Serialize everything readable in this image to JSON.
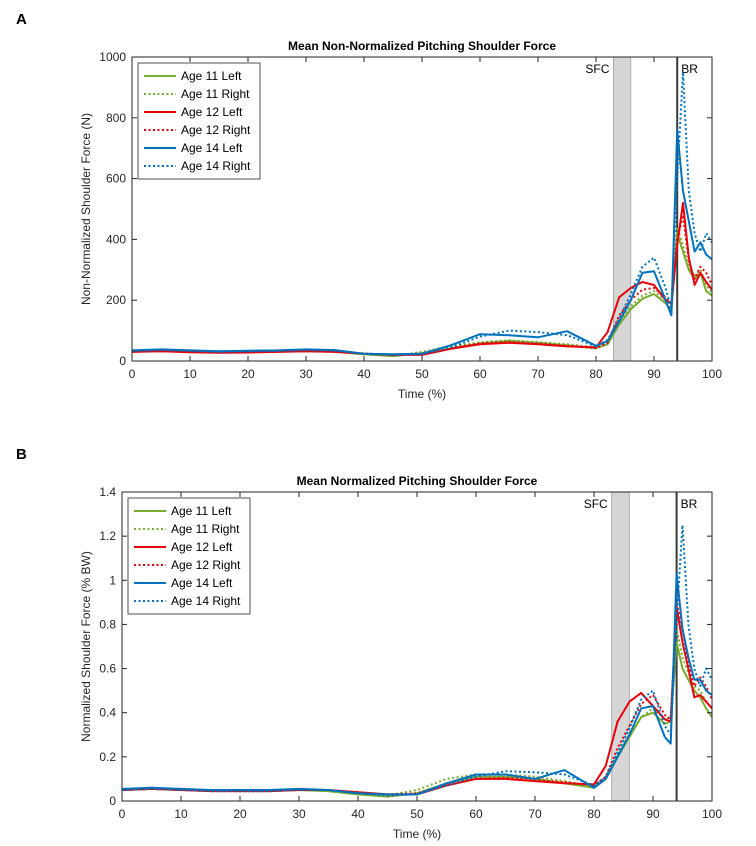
{
  "chart_data": [
    {
      "panel": "A",
      "type": "line",
      "title": "Mean Non-Normalized Pitching Shoulder Force",
      "xlabel": "Time (%)",
      "ylabel": "Non-Normalized Shoulder Force (N)",
      "xlim": [
        0,
        100
      ],
      "ylim": [
        0,
        1000
      ],
      "xticks": [
        0,
        10,
        20,
        30,
        40,
        50,
        60,
        70,
        80,
        90,
        100
      ],
      "yticks": [
        0,
        200,
        400,
        600,
        800,
        1000
      ],
      "ytick_labels": [
        "0",
        "200",
        "400",
        "600",
        "800",
        "1000"
      ],
      "legend_position": "top-left",
      "shaded_region": {
        "label": "SFC",
        "x_start": 83,
        "x_end": 86
      },
      "vertical_line": {
        "label": "BR",
        "x": 94
      },
      "series": [
        {
          "name": "Age 11 Left",
          "color": "#77ac30",
          "dash": "solid",
          "x": [
            0,
            5,
            10,
            15,
            20,
            25,
            30,
            35,
            40,
            45,
            50,
            55,
            60,
            65,
            70,
            75,
            80,
            82,
            84,
            86,
            88,
            90,
            92,
            93,
            94,
            95,
            96,
            97,
            98,
            99,
            100
          ],
          "y": [
            32,
            34,
            31,
            29,
            31,
            31,
            33,
            31,
            22,
            16,
            26,
            42,
            58,
            66,
            60,
            52,
            42,
            55,
            120,
            170,
            205,
            220,
            190,
            165,
            420,
            360,
            300,
            270,
            290,
            230,
            215
          ]
        },
        {
          "name": "Age 11 Right",
          "color": "#77ac30",
          "dash": "dotted",
          "x": [
            0,
            5,
            10,
            15,
            20,
            25,
            30,
            35,
            40,
            45,
            50,
            55,
            60,
            65,
            70,
            75,
            80,
            82,
            84,
            86,
            88,
            90,
            92,
            93,
            94,
            95,
            96,
            97,
            98,
            99,
            100
          ],
          "y": [
            30,
            32,
            30,
            28,
            30,
            30,
            32,
            30,
            22,
            16,
            30,
            48,
            62,
            68,
            62,
            55,
            45,
            60,
            130,
            180,
            215,
            230,
            200,
            175,
            440,
            380,
            310,
            280,
            300,
            250,
            225
          ]
        },
        {
          "name": "Age 12 Left",
          "color": "#e8000b",
          "dash": "solid",
          "x": [
            0,
            5,
            10,
            15,
            20,
            25,
            30,
            35,
            40,
            45,
            50,
            55,
            60,
            65,
            70,
            75,
            80,
            82,
            84,
            86,
            88,
            90,
            92,
            93,
            94,
            95,
            96,
            97,
            98,
            99,
            100
          ],
          "y": [
            30,
            32,
            29,
            27,
            28,
            30,
            32,
            30,
            24,
            20,
            20,
            40,
            55,
            60,
            55,
            48,
            45,
            95,
            210,
            240,
            260,
            250,
            200,
            190,
            380,
            520,
            340,
            250,
            290,
            260,
            235
          ]
        },
        {
          "name": "Age 12 Right",
          "color": "#e8000b",
          "dash": "dotted",
          "x": [
            0,
            5,
            10,
            15,
            20,
            25,
            30,
            35,
            40,
            45,
            50,
            55,
            60,
            65,
            70,
            75,
            80,
            82,
            84,
            86,
            88,
            90,
            92,
            93,
            94,
            95,
            96,
            97,
            98,
            99,
            100
          ],
          "y": [
            31,
            33,
            30,
            28,
            29,
            31,
            33,
            31,
            25,
            20,
            22,
            42,
            58,
            62,
            57,
            50,
            42,
            60,
            150,
            200,
            235,
            240,
            210,
            185,
            400,
            480,
            330,
            270,
            310,
            290,
            250
          ]
        },
        {
          "name": "Age 14 Left",
          "color": "#0072bd",
          "dash": "solid",
          "x": [
            0,
            5,
            10,
            15,
            20,
            25,
            30,
            35,
            40,
            45,
            50,
            55,
            60,
            65,
            70,
            75,
            80,
            82,
            84,
            86,
            88,
            90,
            92,
            93,
            94,
            95,
            96,
            97,
            98,
            99,
            100
          ],
          "y": [
            35,
            38,
            35,
            32,
            34,
            35,
            38,
            36,
            24,
            22,
            24,
            52,
            88,
            85,
            78,
            98,
            50,
            65,
            130,
            200,
            290,
            295,
            200,
            150,
            760,
            560,
            460,
            360,
            390,
            350,
            335
          ]
        },
        {
          "name": "Age 14 Right",
          "color": "#0072bd",
          "dash": "dotted",
          "x": [
            0,
            5,
            10,
            15,
            20,
            25,
            30,
            35,
            40,
            45,
            50,
            55,
            60,
            65,
            70,
            75,
            80,
            82,
            84,
            86,
            88,
            90,
            92,
            93,
            94,
            95,
            96,
            97,
            98,
            99,
            100
          ],
          "y": [
            33,
            36,
            33,
            30,
            32,
            33,
            36,
            34,
            24,
            20,
            22,
            45,
            80,
            100,
            95,
            85,
            48,
            70,
            140,
            220,
            310,
            340,
            240,
            170,
            600,
            950,
            560,
            420,
            360,
            420,
            390
          ]
        }
      ]
    },
    {
      "panel": "B",
      "type": "line",
      "title": "Mean Normalized Pitching Shoulder Force",
      "xlabel": "Time (%)",
      "ylabel": "Normalized Shoulder Force (% BW)",
      "xlim": [
        0,
        100
      ],
      "ylim": [
        0,
        1.4
      ],
      "xticks": [
        0,
        10,
        20,
        30,
        40,
        50,
        60,
        70,
        80,
        90,
        100
      ],
      "yticks": [
        0,
        0.2,
        0.4,
        0.6,
        0.8,
        1,
        1.2,
        1.4
      ],
      "ytick_labels": [
        "0",
        "0.2",
        "0.4",
        "0.6",
        "0.8",
        "1",
        "1.2",
        "1.4"
      ],
      "legend_position": "top-left",
      "shaded_region": {
        "label": "SFC",
        "x_start": 83,
        "x_end": 86
      },
      "vertical_line": {
        "label": "BR",
        "x": 94
      },
      "series": [
        {
          "name": "Age 11 Left",
          "color": "#77ac30",
          "dash": "solid",
          "x": [
            0,
            5,
            10,
            15,
            20,
            25,
            30,
            35,
            40,
            45,
            50,
            55,
            60,
            65,
            70,
            75,
            80,
            82,
            84,
            86,
            88,
            90,
            92,
            93,
            94,
            95,
            96,
            97,
            98,
            99,
            100
          ],
          "y": [
            0.05,
            0.055,
            0.05,
            0.05,
            0.045,
            0.045,
            0.05,
            0.045,
            0.03,
            0.02,
            0.035,
            0.08,
            0.11,
            0.11,
            0.1,
            0.08,
            0.06,
            0.1,
            0.2,
            0.29,
            0.38,
            0.4,
            0.35,
            0.36,
            0.72,
            0.6,
            0.55,
            0.5,
            0.47,
            0.42,
            0.38
          ]
        },
        {
          "name": "Age 11 Right",
          "color": "#77ac30",
          "dash": "dotted",
          "x": [
            0,
            5,
            10,
            15,
            20,
            25,
            30,
            35,
            40,
            45,
            50,
            55,
            60,
            65,
            70,
            75,
            80,
            82,
            84,
            86,
            88,
            90,
            92,
            93,
            94,
            95,
            96,
            97,
            98,
            99,
            100
          ],
          "y": [
            0.05,
            0.055,
            0.05,
            0.05,
            0.045,
            0.045,
            0.05,
            0.045,
            0.03,
            0.025,
            0.05,
            0.1,
            0.12,
            0.12,
            0.11,
            0.09,
            0.065,
            0.11,
            0.21,
            0.3,
            0.38,
            0.42,
            0.37,
            0.38,
            0.78,
            0.65,
            0.58,
            0.52,
            0.5,
            0.45,
            0.42
          ]
        },
        {
          "name": "Age 12 Left",
          "color": "#e8000b",
          "dash": "solid",
          "x": [
            0,
            5,
            10,
            15,
            20,
            25,
            30,
            35,
            40,
            45,
            50,
            55,
            60,
            65,
            70,
            75,
            80,
            82,
            84,
            86,
            88,
            90,
            92,
            93,
            94,
            95,
            96,
            97,
            98,
            99,
            100
          ],
          "y": [
            0.05,
            0.055,
            0.05,
            0.045,
            0.045,
            0.045,
            0.05,
            0.05,
            0.04,
            0.03,
            0.03,
            0.07,
            0.1,
            0.1,
            0.09,
            0.08,
            0.075,
            0.16,
            0.36,
            0.45,
            0.49,
            0.43,
            0.37,
            0.36,
            0.88,
            0.72,
            0.6,
            0.47,
            0.48,
            0.45,
            0.42
          ]
        },
        {
          "name": "Age 12 Right",
          "color": "#e8000b",
          "dash": "dotted",
          "x": [
            0,
            5,
            10,
            15,
            20,
            25,
            30,
            35,
            40,
            45,
            50,
            55,
            60,
            65,
            70,
            75,
            80,
            82,
            84,
            86,
            88,
            90,
            92,
            93,
            94,
            95,
            96,
            97,
            98,
            99,
            100
          ],
          "y": [
            0.05,
            0.055,
            0.05,
            0.045,
            0.045,
            0.045,
            0.05,
            0.05,
            0.04,
            0.03,
            0.035,
            0.075,
            0.1,
            0.105,
            0.095,
            0.085,
            0.07,
            0.11,
            0.24,
            0.34,
            0.44,
            0.48,
            0.39,
            0.37,
            0.9,
            0.78,
            0.62,
            0.52,
            0.56,
            0.52,
            0.46
          ]
        },
        {
          "name": "Age 14 Left",
          "color": "#0072bd",
          "dash": "solid",
          "x": [
            0,
            5,
            10,
            15,
            20,
            25,
            30,
            35,
            40,
            45,
            50,
            55,
            60,
            65,
            70,
            75,
            80,
            82,
            84,
            86,
            88,
            90,
            92,
            93,
            94,
            95,
            96,
            97,
            98,
            99,
            100
          ],
          "y": [
            0.055,
            0.06,
            0.055,
            0.05,
            0.05,
            0.05,
            0.055,
            0.05,
            0.035,
            0.03,
            0.03,
            0.08,
            0.12,
            0.12,
            0.1,
            0.14,
            0.06,
            0.1,
            0.2,
            0.3,
            0.42,
            0.43,
            0.29,
            0.26,
            1.03,
            0.78,
            0.65,
            0.55,
            0.55,
            0.5,
            0.48
          ]
        },
        {
          "name": "Age 14 Right",
          "color": "#0072bd",
          "dash": "dotted",
          "x": [
            0,
            5,
            10,
            15,
            20,
            25,
            30,
            35,
            40,
            45,
            50,
            55,
            60,
            65,
            70,
            75,
            80,
            82,
            84,
            86,
            88,
            90,
            92,
            93,
            94,
            95,
            96,
            97,
            98,
            99,
            100
          ],
          "y": [
            0.05,
            0.055,
            0.05,
            0.045,
            0.045,
            0.045,
            0.05,
            0.05,
            0.035,
            0.025,
            0.03,
            0.07,
            0.11,
            0.135,
            0.13,
            0.12,
            0.07,
            0.11,
            0.22,
            0.33,
            0.46,
            0.5,
            0.34,
            0.3,
            0.82,
            1.25,
            0.8,
            0.6,
            0.52,
            0.6,
            0.55
          ]
        }
      ]
    }
  ],
  "panel_labels": [
    "A",
    "B"
  ]
}
